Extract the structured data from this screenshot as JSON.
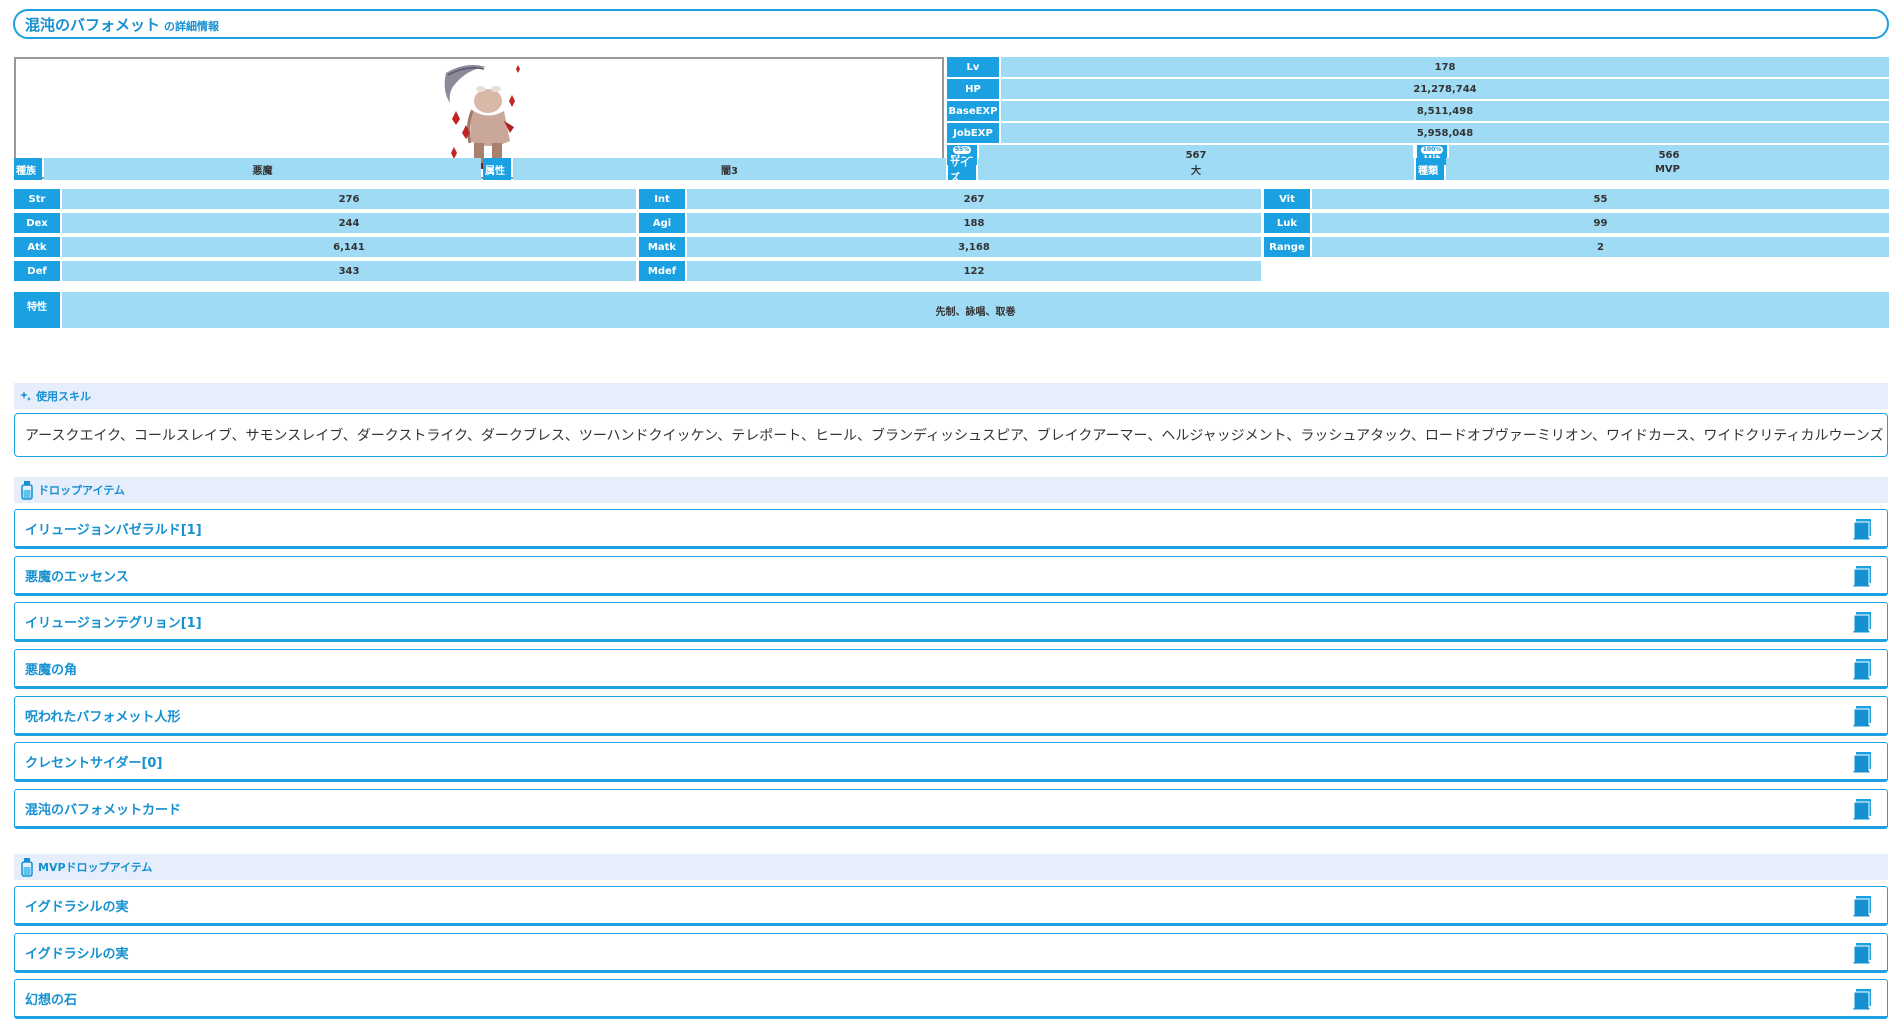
{
  "header": {
    "title": "混沌のバフォメット",
    "subtitle": "の詳細情報"
  },
  "stats_top": [
    {
      "label": "Lv",
      "value": "178"
    },
    {
      "label": "HP",
      "value": "21,278,744"
    },
    {
      "label": "BaseEXP",
      "value": "8,511,498"
    },
    {
      "label": "JobEXP",
      "value": "5,958,048"
    }
  ],
  "flee": {
    "label": "Flee",
    "badge": "95%",
    "value": "567"
  },
  "hit": {
    "label": "Hit",
    "badge": "100%",
    "value": "566"
  },
  "attributes": [
    {
      "label": "種族",
      "value": "悪魔"
    },
    {
      "label": "属性",
      "value": "闇3"
    },
    {
      "label": "サイズ",
      "value": "大"
    },
    {
      "label": "種類",
      "value": "MVP"
    }
  ],
  "stats_grid": [
    [
      {
        "label": "Str",
        "value": "276"
      },
      {
        "label": "Int",
        "value": "267"
      },
      {
        "label": "Vit",
        "value": "55"
      }
    ],
    [
      {
        "label": "Dex",
        "value": "244"
      },
      {
        "label": "Agi",
        "value": "188"
      },
      {
        "label": "Luk",
        "value": "99"
      }
    ],
    [
      {
        "label": "Atk",
        "value": "6,141"
      },
      {
        "label": "Matk",
        "value": "3,168"
      },
      {
        "label": "Range",
        "value": "2"
      }
    ],
    [
      {
        "label": "Def",
        "value": "343"
      },
      {
        "label": "Mdef",
        "value": "122"
      }
    ]
  ],
  "traits": {
    "label": "特性",
    "value": "先制、詠唱、取巻"
  },
  "skills": {
    "heading": "使用スキル",
    "text": "アースクエイク、コールスレイブ、サモンスレイブ、ダークストライク、ダークブレス、ツーハンドクイッケン、テレポート、ヒール、ブランディッシュスピア、ブレイクアーマー、ヘルジャッジメント、ラッシュアタック、ロードオブヴァーミリオン、ワイドカース、ワイドクリティカルウーンズ"
  },
  "drops": {
    "heading": "ドロップアイテム",
    "items": [
      "イリュージョンバゼラルド[1]",
      "悪魔のエッセンス",
      "イリュージョンテグリョン[1]",
      "悪魔の角",
      "呪われたバフォメット人形",
      "クレセントサイダー[0]",
      "混沌のバフォメットカード"
    ]
  },
  "mvp_drops": {
    "heading": "MVPドロップアイテム",
    "items": [
      "イグドラシルの実",
      "イグドラシルの実",
      "幻想の石"
    ]
  },
  "colors": {
    "accent": "#1ba1e2",
    "value_bg": "#9fdbf5",
    "section_bg": "#e6eefc",
    "text_link": "#1590d0"
  }
}
